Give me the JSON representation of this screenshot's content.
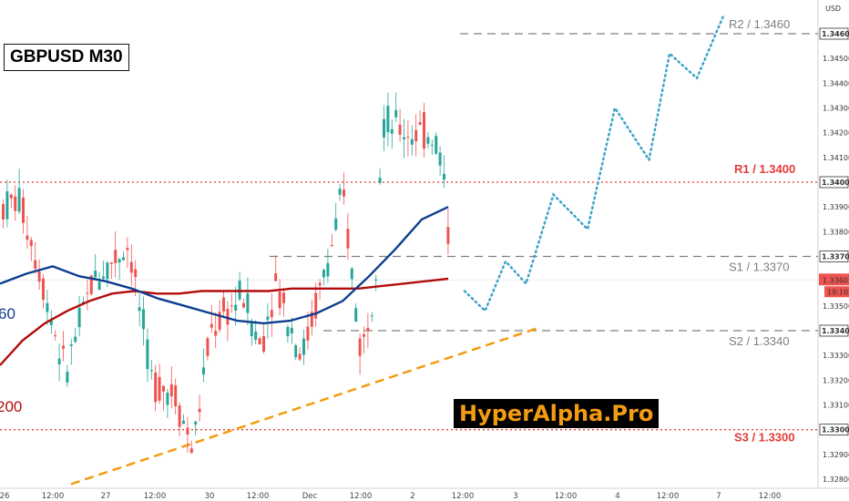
{
  "header": {
    "symbol": "GBPUSD M30",
    "currency": "USD"
  },
  "brand": "HyperAlpha.Pro",
  "ma_labels": {
    "blue": "60",
    "red": "200"
  },
  "colors": {
    "blue_ma": "#0d3d8f",
    "red_ma": "#b20d0d",
    "bull": "#26a69a",
    "bear": "#ef5350",
    "resistance": "#e53935",
    "support": "#7f7f7f",
    "trend": "#f39c12",
    "projection": "#3aa3c8",
    "brand_bg": "#000000",
    "brand_text": "#f39c12"
  },
  "chart_data": {
    "type": "candlestick",
    "y_axis": {
      "ticks": [
        "1.34600",
        "1.34500",
        "1.34400",
        "1.34300",
        "1.34200",
        "1.34100",
        "1.34000",
        "1.33900",
        "1.33800",
        "1.33700",
        "1.33600",
        "1.33500",
        "1.33400",
        "1.33300",
        "1.33200",
        "1.33100",
        "1.33000",
        "1.32900",
        "1.32800"
      ],
      "range": [
        1.3276,
        1.3469
      ]
    },
    "x_axis": {
      "labels": [
        "26",
        "12:00",
        "27",
        "12:00",
        "30",
        "12:00",
        "Dec",
        "12:00",
        "2",
        "12:00",
        "3",
        "12:00",
        "4",
        "12:00",
        "7",
        "12:00"
      ]
    },
    "price": {
      "last": "1.33605",
      "countdown": "19:10"
    },
    "levels": [
      {
        "name": "R2",
        "label": "R2 / 1.3460",
        "value": 1.346,
        "style": "dashed",
        "kind": "support"
      },
      {
        "name": "R1",
        "label": "R1 / 1.3400",
        "value": 1.34,
        "style": "dotted",
        "kind": "resistance"
      },
      {
        "name": "S1",
        "label": "S1 / 1.3370",
        "value": 1.337,
        "style": "dashed",
        "kind": "support"
      },
      {
        "name": "S2",
        "label": "S2 / 1.3340",
        "value": 1.334,
        "style": "dashed",
        "kind": "support"
      },
      {
        "name": "S3",
        "label": "S3 / 1.3300",
        "value": 1.33,
        "style": "dotted",
        "kind": "resistance"
      }
    ],
    "axis_markers": [
      "1.34600",
      "1.34000",
      "1.33700",
      "1.33400",
      "1.33000"
    ],
    "trendline": {
      "from": [
        0.0,
        1.3278
      ],
      "to": [
        0.5,
        1.3341
      ]
    },
    "projection_path": [
      [
        0.0,
        1.3356
      ],
      [
        0.03,
        1.3348
      ],
      [
        0.06,
        1.3368
      ],
      [
        0.09,
        1.3359
      ],
      [
        0.13,
        1.3395
      ],
      [
        0.18,
        1.3381
      ],
      [
        0.22,
        1.343
      ],
      [
        0.27,
        1.3409
      ],
      [
        0.3,
        1.3452
      ],
      [
        0.34,
        1.3442
      ],
      [
        0.38,
        1.3468
      ]
    ],
    "candles_seed": 7,
    "ma_fast": [
      1.3359,
      1.3363,
      1.3366,
      1.3362,
      1.336,
      1.3357,
      1.3353,
      1.335,
      1.3347,
      1.3344,
      1.3343,
      1.3344,
      1.3347,
      1.3352,
      1.3362,
      1.3373,
      1.3385,
      1.339
    ],
    "ma_slow": [
      1.3326,
      1.3336,
      1.3343,
      1.3348,
      1.3352,
      1.3355,
      1.3356,
      1.3355,
      1.3355,
      1.3356,
      1.3356,
      1.3356,
      1.3356,
      1.3357,
      1.3357,
      1.3357,
      1.3357,
      1.3358,
      1.3359,
      1.336,
      1.3361
    ]
  }
}
